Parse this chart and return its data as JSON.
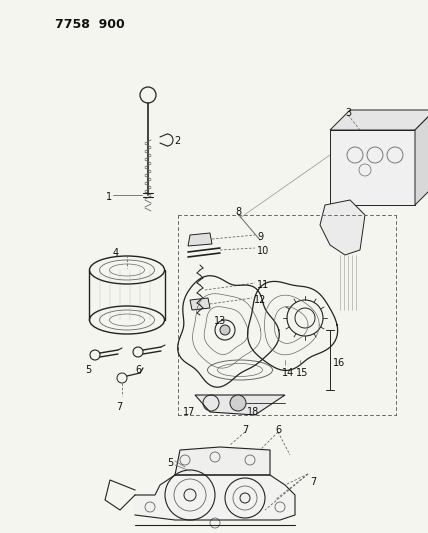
{
  "title": "7758  900",
  "bg_color": "#f5f5f0",
  "text_color": "#111111",
  "line_color": "#222222",
  "gray": "#666666",
  "lgray": "#999999",
  "figsize": [
    4.28,
    5.33
  ],
  "dpi": 100
}
